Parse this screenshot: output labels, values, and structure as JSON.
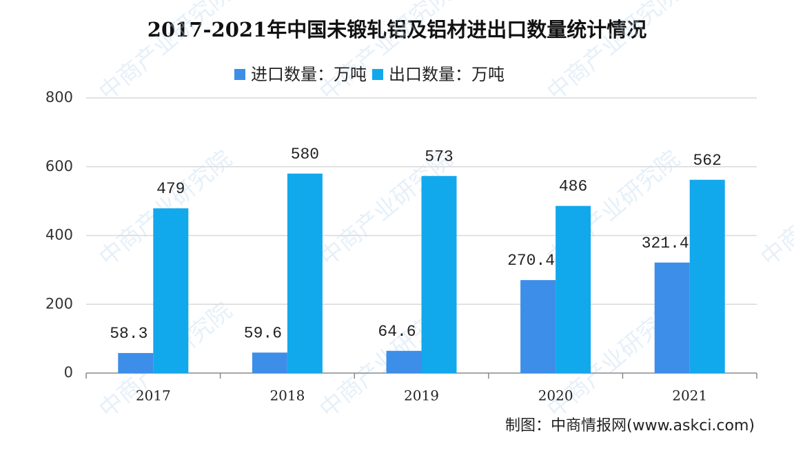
{
  "chart_data": {
    "type": "bar",
    "title": "2017-2021年中国未锻轧铝及铝材进出口数量统计情况",
    "categories": [
      "2017",
      "2018",
      "2019",
      "2020",
      "2021"
    ],
    "series": [
      {
        "name": "进口数量：万吨",
        "color": "#3d8ee8",
        "values": [
          58.3,
          59.6,
          64.6,
          270.4,
          321.4
        ]
      },
      {
        "name": "出口数量：万吨",
        "color": "#12a8ec",
        "values": [
          479,
          580,
          573,
          486,
          562
        ]
      }
    ],
    "ylim": [
      0,
      800
    ],
    "yticks": [
      0,
      200,
      400,
      600,
      800
    ],
    "grid": true,
    "legend": "top",
    "source": "制图：中商情报网(www.askci.com)",
    "watermark": "中商产业研究院"
  }
}
